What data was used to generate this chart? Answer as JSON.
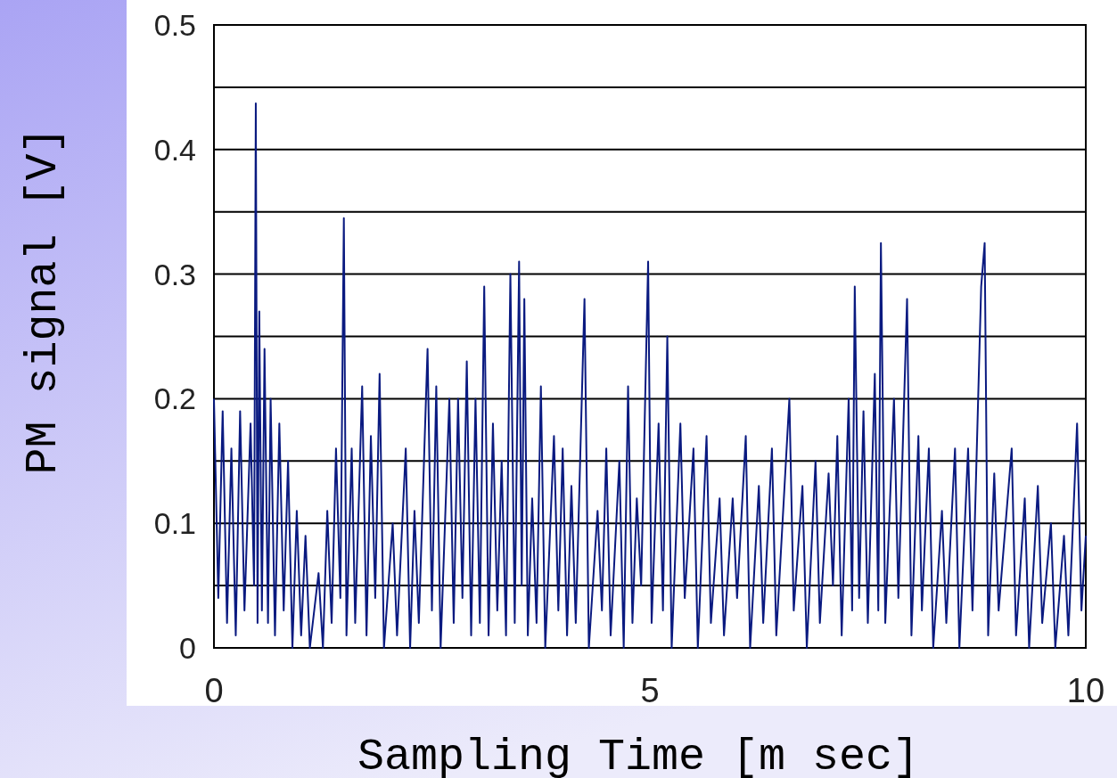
{
  "chart_data": {
    "type": "line",
    "xlabel": "Sampling Time [m sec]",
    "ylabel": "PM signal [V]",
    "xlim": [
      0,
      10
    ],
    "xticks": [
      0,
      5,
      10
    ],
    "ylim": [
      0,
      0.5
    ],
    "yticks": [
      0,
      {
        "value": 0.05,
        "label": null
      },
      0.1,
      {
        "value": 0.15,
        "label": null
      },
      0.2,
      {
        "value": 0.25,
        "label": null
      },
      0.3,
      {
        "value": 0.35,
        "label": null
      },
      0.4,
      {
        "value": 0.45,
        "label": null
      },
      0.5
    ],
    "grid": "y",
    "marker": "none",
    "line_style": "solid",
    "series": [
      {
        "color": "#0a1a80",
        "x": [
          0,
          0.05,
          0.1,
          0.15,
          0.2,
          0.25,
          0.3,
          0.35,
          0.42,
          0.46,
          0.48,
          0.5,
          0.52,
          0.55,
          0.58,
          0.62,
          0.65,
          0.7,
          0.75,
          0.8,
          0.85,
          0.9,
          0.95,
          1.0,
          1.05,
          1.1,
          1.2,
          1.25,
          1.3,
          1.35,
          1.4,
          1.45,
          1.49,
          1.52,
          1.58,
          1.62,
          1.7,
          1.75,
          1.8,
          1.85,
          1.9,
          1.95,
          2.05,
          2.1,
          2.2,
          2.25,
          2.3,
          2.35,
          2.45,
          2.5,
          2.55,
          2.6,
          2.7,
          2.75,
          2.8,
          2.85,
          2.9,
          2.95,
          3.0,
          3.05,
          3.1,
          3.15,
          3.2,
          3.25,
          3.3,
          3.35,
          3.4,
          3.45,
          3.5,
          3.53,
          3.56,
          3.6,
          3.65,
          3.7,
          3.75,
          3.8,
          3.9,
          3.95,
          4.0,
          4.05,
          4.1,
          4.15,
          4.25,
          4.3,
          4.4,
          4.45,
          4.5,
          4.55,
          4.65,
          4.7,
          4.75,
          4.8,
          4.85,
          4.9,
          4.98,
          5.02,
          5.1,
          5.15,
          5.2,
          5.25,
          5.35,
          5.4,
          5.5,
          5.55,
          5.65,
          5.7,
          5.8,
          5.85,
          5.95,
          6.0,
          6.1,
          6.15,
          6.25,
          6.3,
          6.4,
          6.45,
          6.6,
          6.65,
          6.75,
          6.8,
          6.9,
          6.95,
          7.05,
          7.1,
          7.15,
          7.2,
          7.28,
          7.32,
          7.35,
          7.4,
          7.45,
          7.5,
          7.58,
          7.62,
          7.65,
          7.7,
          7.8,
          7.85,
          7.95,
          8.0,
          8.08,
          8.12,
          8.2,
          8.25,
          8.35,
          8.4,
          8.5,
          8.55,
          8.65,
          8.7,
          8.8,
          8.84,
          8.88,
          8.95,
          9.0,
          9.15,
          9.2,
          9.3,
          9.35,
          9.45,
          9.5,
          9.6,
          9.65,
          9.75,
          9.8,
          9.9,
          9.95,
          10.0
        ],
        "values": [
          0.2,
          0.04,
          0.19,
          0.02,
          0.16,
          0.01,
          0.19,
          0.03,
          0.18,
          0.05,
          0.437,
          0.02,
          0.27,
          0.03,
          0.24,
          0.02,
          0.2,
          0.01,
          0.18,
          0.03,
          0.15,
          0.0,
          0.11,
          0.01,
          0.09,
          0.0,
          0.06,
          0.0,
          0.11,
          0.02,
          0.16,
          0.04,
          0.345,
          0.01,
          0.16,
          0.02,
          0.21,
          0.01,
          0.17,
          0.04,
          0.22,
          0.0,
          0.1,
          0.01,
          0.16,
          0.0,
          0.11,
          0.02,
          0.24,
          0.03,
          0.21,
          0.0,
          0.2,
          0.02,
          0.2,
          0.04,
          0.23,
          0.01,
          0.2,
          0.02,
          0.29,
          0.01,
          0.18,
          0.03,
          0.15,
          0.01,
          0.3,
          0.02,
          0.31,
          0.05,
          0.28,
          0.01,
          0.12,
          0.02,
          0.21,
          0.0,
          0.17,
          0.03,
          0.16,
          0.01,
          0.13,
          0.02,
          0.28,
          0.0,
          0.11,
          0.03,
          0.16,
          0.01,
          0.15,
          0.0,
          0.21,
          0.02,
          0.12,
          0.05,
          0.31,
          0.02,
          0.18,
          0.03,
          0.25,
          0.0,
          0.18,
          0.04,
          0.16,
          0.0,
          0.17,
          0.02,
          0.12,
          0.01,
          0.12,
          0.04,
          0.17,
          0.0,
          0.13,
          0.02,
          0.16,
          0.01,
          0.2,
          0.03,
          0.13,
          0.0,
          0.15,
          0.02,
          0.14,
          0.05,
          0.17,
          0.01,
          0.2,
          0.03,
          0.29,
          0.04,
          0.19,
          0.02,
          0.22,
          0.03,
          0.325,
          0.02,
          0.2,
          0.04,
          0.28,
          0.01,
          0.17,
          0.03,
          0.16,
          0.0,
          0.11,
          0.02,
          0.16,
          0.0,
          0.16,
          0.03,
          0.29,
          0.325,
          0.01,
          0.14,
          0.03,
          0.16,
          0.01,
          0.12,
          0.0,
          0.13,
          0.02,
          0.1,
          0.0,
          0.09,
          0.01,
          0.18,
          0.03,
          0.09
        ]
      }
    ]
  }
}
